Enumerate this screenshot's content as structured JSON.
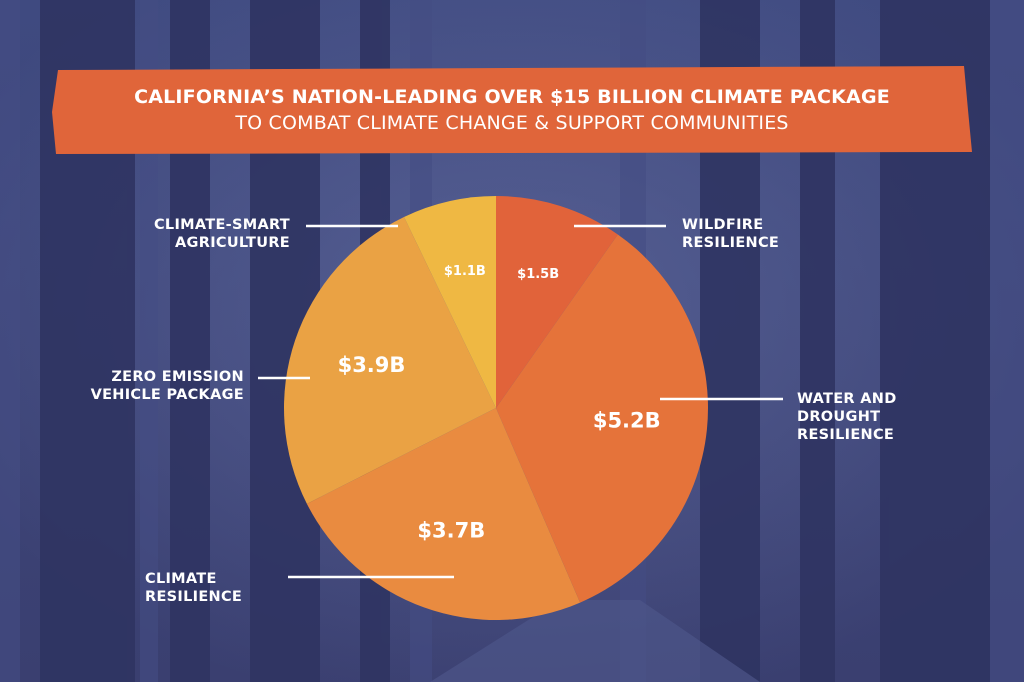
{
  "title_line1": "CALIFORNIA’S NATION-LEADING OVER $15 BILLION CLIMATE PACKAGE",
  "title_line2": "TO COMBAT CLIMATE CHANGE & SUPPORT COMMUNITIES",
  "colors": {
    "background": "#3b4276",
    "banner": "#e0653a",
    "text": "#ffffff"
  },
  "chart_data": {
    "type": "pie",
    "title": "California’s Nation-Leading Over $15 Billion Climate Package",
    "unit": "billion USD",
    "start": "12 o'clock, clockwise",
    "slices": [
      {
        "label": "WILDFIRE\nRESILIENCE",
        "value": 1.5,
        "value_label": "$1.5B",
        "color": "#e1633a"
      },
      {
        "label": "WATER AND\nDROUGHT\nRESILIENCE",
        "value": 5.2,
        "value_label": "$5.2B",
        "color": "#e5733a"
      },
      {
        "label": "CLIMATE\nRESILIENCE",
        "value": 3.7,
        "value_label": "$3.7B",
        "color": "#e98b40"
      },
      {
        "label": "ZERO EMISSION\nVEHICLE PACKAGE",
        "value": 3.9,
        "value_label": "$3.9B",
        "color": "#eaa244"
      },
      {
        "label": "CLIMATE-SMART\nAGRICULTURE",
        "value": 1.1,
        "value_label": "$1.1B",
        "color": "#efb843"
      }
    ]
  }
}
